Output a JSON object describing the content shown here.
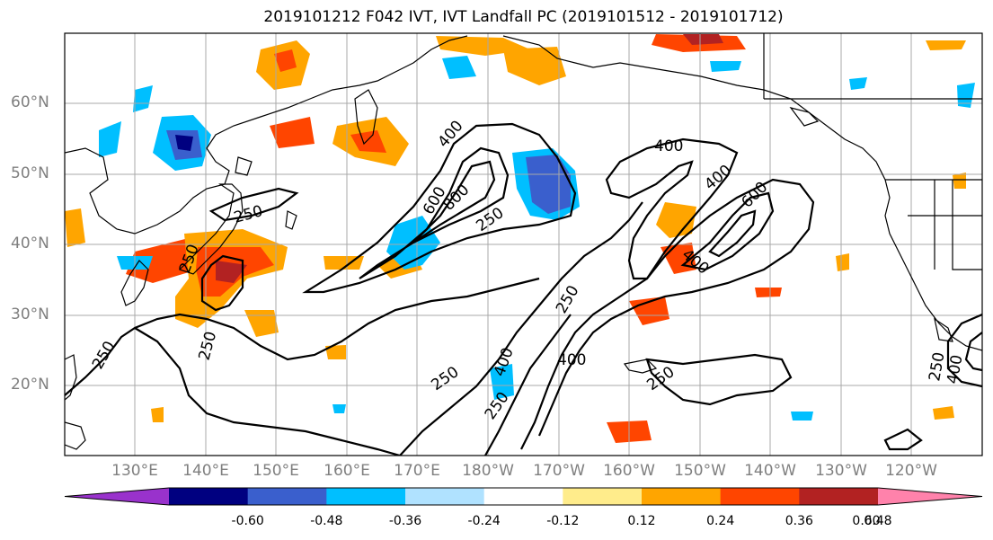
{
  "title": "2019101212 F042 IVT, IVT Landfall PC (2019101512 - 2019101712)",
  "lat_labels": [
    "60°N",
    "50°N",
    "40°N",
    "30°N",
    "20°N"
  ],
  "lon_labels": [
    "130°E",
    "140°E",
    "150°E",
    "160°E",
    "170°E",
    "180°W",
    "170°W",
    "160°W",
    "150°W",
    "140°W",
    "130°W",
    "120°W"
  ],
  "colorbar": {
    "colors": [
      "#9932cc",
      "#000080",
      "#3a5fcd",
      "#00bfff",
      "#b0e2ff",
      "#ffffff",
      "#ffec8b",
      "#ffa500",
      "#ff4500",
      "#b22222",
      "#ff82ab"
    ],
    "tick_labels": [
      "-0.60",
      "-0.48",
      "-0.36",
      "-0.24",
      "-0.12",
      "0.12",
      "0.24",
      "0.36",
      "0.48",
      "0.60"
    ]
  },
  "contour_labels": [
    "400",
    "400",
    "400",
    "600",
    "600",
    "800",
    "400",
    "250",
    "250",
    "250",
    "400",
    "250",
    "250",
    "250",
    "250",
    "250",
    "400",
    "250",
    "250",
    "400"
  ]
}
